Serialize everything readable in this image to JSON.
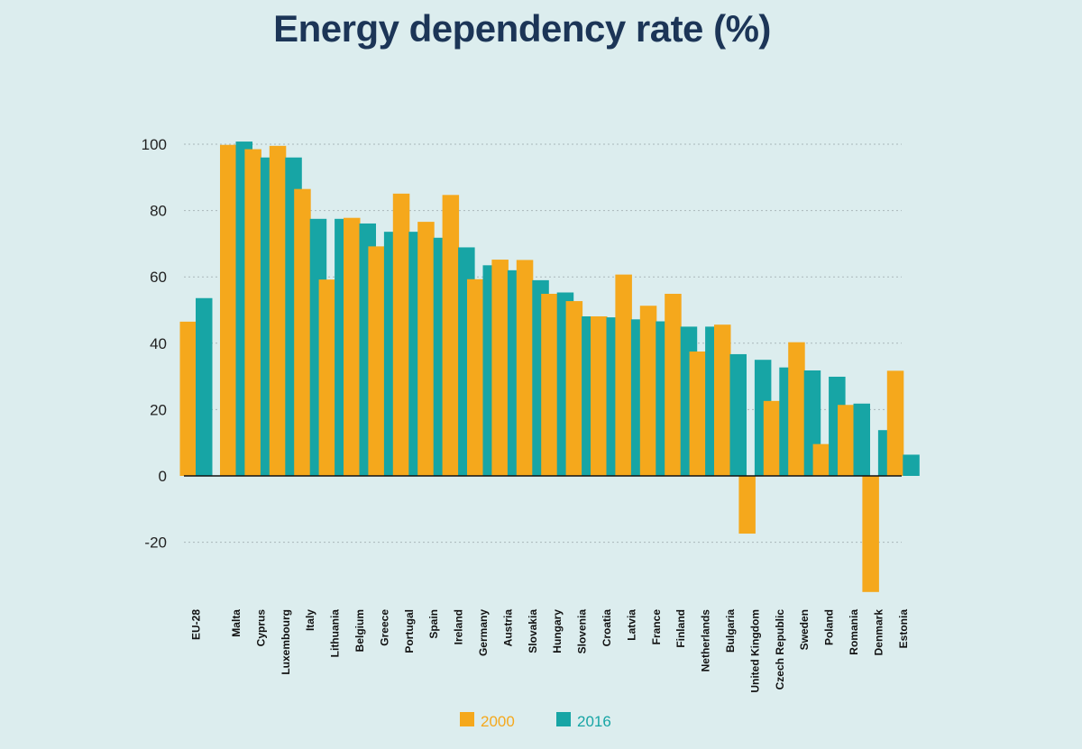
{
  "chart_data": {
    "type": "bar",
    "title": "Energy dependency rate (%)",
    "xlabel": "",
    "ylabel": "",
    "ylim": [
      -35,
      100
    ],
    "yticks": [
      100,
      80,
      60,
      40,
      20,
      0,
      -20
    ],
    "grid": true,
    "legend_position": "bottom",
    "categories": [
      "EU-28",
      "Malta",
      "Cyprus",
      "Luxembourg",
      "Italy",
      "Lithuania",
      "Belgium",
      "Greece",
      "Portugal",
      "Spain",
      "Ireland",
      "Germany",
      "Austria",
      "Slovakia",
      "Hungary",
      "Slovenia",
      "Croatia",
      "Latvia",
      "France",
      "Finland",
      "Netherlands",
      "Bulgaria",
      "United Kingdom",
      "Czech Republic",
      "Sweden",
      "Poland",
      "Romania",
      "Denmark",
      "Estonia"
    ],
    "series": [
      {
        "name": "2000",
        "color": "#f5a81c",
        "values": [
          46.5,
          99.8,
          98.5,
          99.5,
          86.5,
          59.2,
          77.8,
          69.2,
          85.1,
          76.6,
          84.7,
          59.3,
          65.2,
          65.1,
          54.9,
          52.7,
          48.1,
          60.7,
          51.3,
          54.9,
          37.5,
          45.6,
          -17.4,
          22.6,
          40.3,
          9.6,
          21.4,
          -35.0,
          31.7
        ]
      },
      {
        "name": "2016",
        "color": "#17a5a5",
        "values": [
          53.6,
          100.8,
          96.0,
          96.0,
          77.5,
          77.5,
          76.1,
          73.6,
          73.6,
          71.8,
          68.9,
          63.5,
          62.0,
          59.0,
          55.3,
          48.1,
          47.8,
          47.2,
          46.6,
          45.0,
          45.0,
          36.7,
          35.0,
          32.7,
          31.8,
          29.9,
          21.8,
          13.8,
          6.4
        ]
      }
    ]
  }
}
